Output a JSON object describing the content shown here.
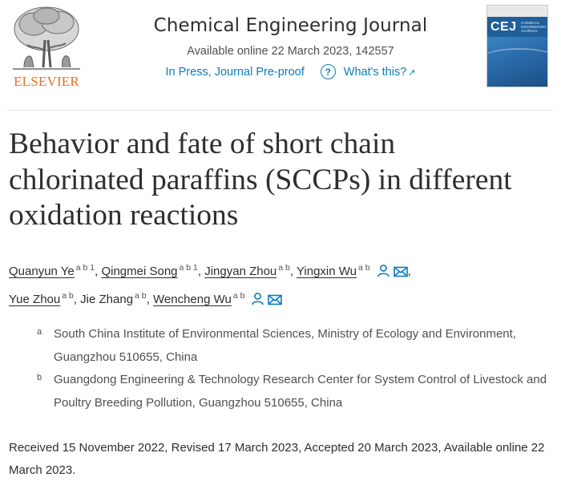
{
  "publisher": {
    "name": "ELSEVIER"
  },
  "journal": {
    "name": "Chemical Engineering Journal",
    "available_line": "Available online 22 March 2023, 142557",
    "status_link": "In Press, Journal Pre-proof",
    "whats_this": "What's this?",
    "cover_abbrev": "CEJ",
    "cover_subtitle": "CHEMICAL ENGINEERING JOURNAL"
  },
  "article": {
    "title_lines": [
      "Behavior and fate of short chain",
      "chlorinated paraffins (SCCPs) in different",
      "oxidation reactions"
    ]
  },
  "authors": [
    {
      "name": "Quanyun Ye",
      "sup": "a b 1"
    },
    {
      "name": "Qingmei Song",
      "sup": "a b 1"
    },
    {
      "name": "Jingyan Zhou",
      "sup": "a b"
    },
    {
      "name": "Yingxin Wu",
      "sup": "a b"
    },
    {
      "name": "Yue Zhou",
      "sup": "a b"
    },
    {
      "name": "Jie Zhang",
      "sup": "a b"
    },
    {
      "name": "Wencheng Wu",
      "sup": "a b"
    }
  ],
  "affiliations": [
    {
      "label": "a",
      "text": "South China Institute of Environmental Sciences, Ministry of Ecology and Environment, Guangzhou 510655, China"
    },
    {
      "label": "b",
      "text": "Guangdong Engineering & Technology Research Center for System Control of Livestock and Poultry Breeding Pollution, Guangzhou 510655, China"
    }
  ],
  "history": "Received 15 November 2022, Revised 17 March 2023, Accepted 20 March 2023, Available online 22 March 2023.",
  "colors": {
    "link": "#0c7dbb",
    "publisher_orange": "#e9711c",
    "text": "#2e2e2e"
  }
}
